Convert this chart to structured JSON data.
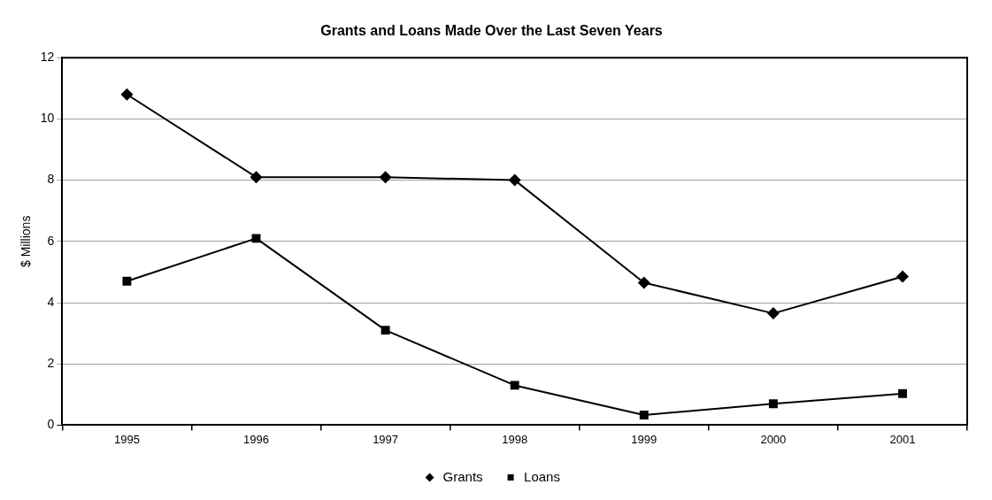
{
  "chart_data": {
    "type": "line",
    "title": "Grants and Loans Made Over the Last Seven Years",
    "ylabel": "$ Millions",
    "categories": [
      "1995",
      "1996",
      "1997",
      "1998",
      "1999",
      "2000",
      "2001"
    ],
    "series": [
      {
        "name": "Grants",
        "color": "#000000",
        "marker": "diamond",
        "values": [
          10.8,
          8.1,
          8.1,
          8.0,
          4.65,
          3.65,
          4.85
        ]
      },
      {
        "name": "Loans",
        "color": "#000000",
        "marker": "square",
        "values": [
          4.7,
          6.1,
          3.1,
          1.3,
          0.33,
          0.7,
          1.03
        ]
      }
    ],
    "ylim": [
      0,
      12
    ],
    "yticks": [
      0,
      2,
      4,
      6,
      8,
      10,
      12
    ],
    "grid": "y",
    "legend": "bottom",
    "line_style": "solid"
  }
}
